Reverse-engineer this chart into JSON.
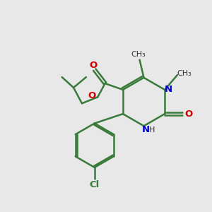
{
  "background_color": "#e8e8e8",
  "bond_color": "#3a7a3a",
  "nitrogen_color": "#0000cc",
  "oxygen_color": "#cc0000",
  "text_color": "#000000",
  "line_width": 1.8,
  "figsize": [
    3.0,
    3.0
  ],
  "dpi": 100,
  "xlim": [
    0,
    10
  ],
  "ylim": [
    0,
    10
  ]
}
